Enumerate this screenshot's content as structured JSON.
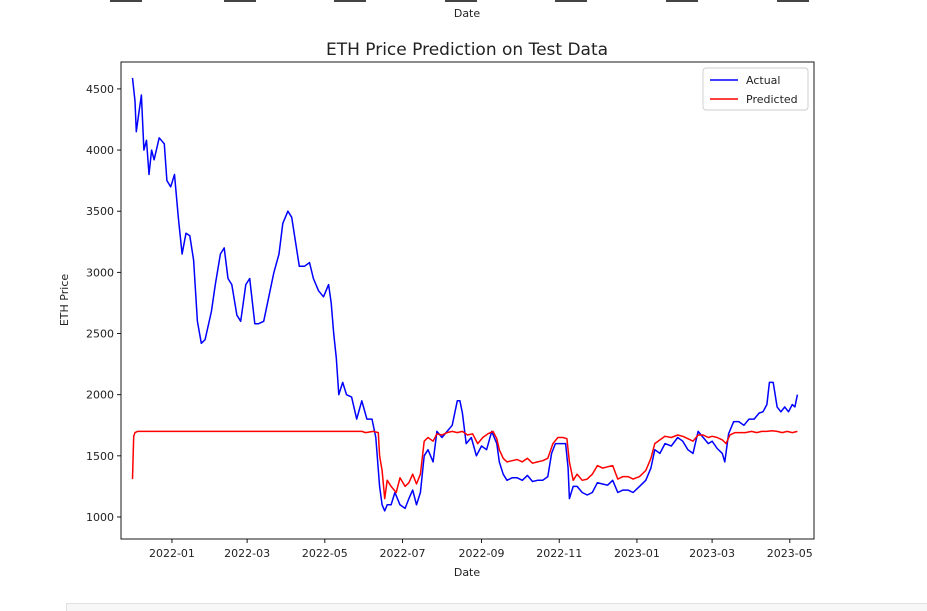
{
  "previous_chart_fragment": {
    "xlabel": "Date"
  },
  "chart_data": {
    "type": "line",
    "title": "ETH Price Prediction on Test Data",
    "xlabel": "Date",
    "ylabel": "ETH Price",
    "xlim": [
      "2021-11-22",
      "2023-05-20"
    ],
    "ylim": [
      820,
      4720
    ],
    "x_ticks": [
      "2022-01",
      "2022-03",
      "2022-05",
      "2022-07",
      "2022-09",
      "2022-11",
      "2023-01",
      "2023-03",
      "2023-05"
    ],
    "y_ticks": [
      1000,
      1500,
      2000,
      2500,
      3000,
      3500,
      4000,
      4500
    ],
    "grid": false,
    "legend_position": "top-right",
    "series": [
      {
        "name": "Actual",
        "color": "#0000ff",
        "points": [
          [
            "2021-12-01",
            4590
          ],
          [
            "2021-12-03",
            4400
          ],
          [
            "2021-12-04",
            4150
          ],
          [
            "2021-12-06",
            4300
          ],
          [
            "2021-12-08",
            4450
          ],
          [
            "2021-12-10",
            4000
          ],
          [
            "2021-12-12",
            4080
          ],
          [
            "2021-12-14",
            3800
          ],
          [
            "2021-12-16",
            4000
          ],
          [
            "2021-12-18",
            3920
          ],
          [
            "2021-12-22",
            4100
          ],
          [
            "2021-12-26",
            4050
          ],
          [
            "2021-12-28",
            3750
          ],
          [
            "2021-12-31",
            3700
          ],
          [
            "2022-01-03",
            3800
          ],
          [
            "2022-01-06",
            3450
          ],
          [
            "2022-01-09",
            3150
          ],
          [
            "2022-01-12",
            3320
          ],
          [
            "2022-01-15",
            3300
          ],
          [
            "2022-01-18",
            3100
          ],
          [
            "2022-01-21",
            2600
          ],
          [
            "2022-01-24",
            2420
          ],
          [
            "2022-01-27",
            2450
          ],
          [
            "2022-02-01",
            2680
          ],
          [
            "2022-02-04",
            2900
          ],
          [
            "2022-02-08",
            3150
          ],
          [
            "2022-02-11",
            3200
          ],
          [
            "2022-02-14",
            2950
          ],
          [
            "2022-02-17",
            2900
          ],
          [
            "2022-02-21",
            2650
          ],
          [
            "2022-02-24",
            2600
          ],
          [
            "2022-02-28",
            2900
          ],
          [
            "2022-03-03",
            2950
          ],
          [
            "2022-03-07",
            2580
          ],
          [
            "2022-03-10",
            2580
          ],
          [
            "2022-03-14",
            2600
          ],
          [
            "2022-03-18",
            2800
          ],
          [
            "2022-03-22",
            3000
          ],
          [
            "2022-03-26",
            3150
          ],
          [
            "2022-03-29",
            3400
          ],
          [
            "2022-04-02",
            3500
          ],
          [
            "2022-04-05",
            3450
          ],
          [
            "2022-04-08",
            3250
          ],
          [
            "2022-04-11",
            3050
          ],
          [
            "2022-04-15",
            3050
          ],
          [
            "2022-04-19",
            3080
          ],
          [
            "2022-04-22",
            2950
          ],
          [
            "2022-04-26",
            2850
          ],
          [
            "2022-04-30",
            2800
          ],
          [
            "2022-05-04",
            2900
          ],
          [
            "2022-05-06",
            2750
          ],
          [
            "2022-05-08",
            2500
          ],
          [
            "2022-05-10",
            2300
          ],
          [
            "2022-05-12",
            2000
          ],
          [
            "2022-05-15",
            2100
          ],
          [
            "2022-05-18",
            2000
          ],
          [
            "2022-05-22",
            1980
          ],
          [
            "2022-05-26",
            1800
          ],
          [
            "2022-05-30",
            1950
          ],
          [
            "2022-06-03",
            1800
          ],
          [
            "2022-06-07",
            1800
          ],
          [
            "2022-06-10",
            1650
          ],
          [
            "2022-06-13",
            1250
          ],
          [
            "2022-06-15",
            1100
          ],
          [
            "2022-06-17",
            1050
          ],
          [
            "2022-06-19",
            1100
          ],
          [
            "2022-06-22",
            1100
          ],
          [
            "2022-06-25",
            1200
          ],
          [
            "2022-06-29",
            1100
          ],
          [
            "2022-07-03",
            1070
          ],
          [
            "2022-07-06",
            1150
          ],
          [
            "2022-07-09",
            1220
          ],
          [
            "2022-07-12",
            1100
          ],
          [
            "2022-07-15",
            1200
          ],
          [
            "2022-07-18",
            1500
          ],
          [
            "2022-07-21",
            1550
          ],
          [
            "2022-07-25",
            1450
          ],
          [
            "2022-07-28",
            1700
          ],
          [
            "2022-08-01",
            1650
          ],
          [
            "2022-08-05",
            1700
          ],
          [
            "2022-08-09",
            1750
          ],
          [
            "2022-08-13",
            1950
          ],
          [
            "2022-08-15",
            1950
          ],
          [
            "2022-08-17",
            1850
          ],
          [
            "2022-08-20",
            1600
          ],
          [
            "2022-08-24",
            1650
          ],
          [
            "2022-08-28",
            1500
          ],
          [
            "2022-09-01",
            1580
          ],
          [
            "2022-09-05",
            1550
          ],
          [
            "2022-09-09",
            1700
          ],
          [
            "2022-09-13",
            1600
          ],
          [
            "2022-09-15",
            1450
          ],
          [
            "2022-09-18",
            1350
          ],
          [
            "2022-09-21",
            1300
          ],
          [
            "2022-09-25",
            1320
          ],
          [
            "2022-09-29",
            1320
          ],
          [
            "2022-10-03",
            1300
          ],
          [
            "2022-10-07",
            1340
          ],
          [
            "2022-10-11",
            1290
          ],
          [
            "2022-10-15",
            1300
          ],
          [
            "2022-10-19",
            1300
          ],
          [
            "2022-10-23",
            1330
          ],
          [
            "2022-10-26",
            1520
          ],
          [
            "2022-10-29",
            1600
          ],
          [
            "2022-11-03",
            1600
          ],
          [
            "2022-11-06",
            1600
          ],
          [
            "2022-11-08",
            1400
          ],
          [
            "2022-11-09",
            1150
          ],
          [
            "2022-11-12",
            1250
          ],
          [
            "2022-11-15",
            1250
          ],
          [
            "2022-11-19",
            1200
          ],
          [
            "2022-11-23",
            1180
          ],
          [
            "2022-11-27",
            1200
          ],
          [
            "2022-12-01",
            1280
          ],
          [
            "2022-12-05",
            1270
          ],
          [
            "2022-12-09",
            1260
          ],
          [
            "2022-12-13",
            1300
          ],
          [
            "2022-12-17",
            1200
          ],
          [
            "2022-12-21",
            1220
          ],
          [
            "2022-12-25",
            1220
          ],
          [
            "2022-12-29",
            1200
          ],
          [
            "2023-01-03",
            1250
          ],
          [
            "2023-01-08",
            1300
          ],
          [
            "2023-01-12",
            1400
          ],
          [
            "2023-01-15",
            1550
          ],
          [
            "2023-01-19",
            1520
          ],
          [
            "2023-01-23",
            1600
          ],
          [
            "2023-01-28",
            1580
          ],
          [
            "2023-02-02",
            1650
          ],
          [
            "2023-02-06",
            1620
          ],
          [
            "2023-02-10",
            1550
          ],
          [
            "2023-02-14",
            1520
          ],
          [
            "2023-02-18",
            1700
          ],
          [
            "2023-02-22",
            1650
          ],
          [
            "2023-02-26",
            1600
          ],
          [
            "2023-03-01",
            1620
          ],
          [
            "2023-03-05",
            1560
          ],
          [
            "2023-03-09",
            1520
          ],
          [
            "2023-03-11",
            1450
          ],
          [
            "2023-03-14",
            1680
          ],
          [
            "2023-03-18",
            1780
          ],
          [
            "2023-03-22",
            1780
          ],
          [
            "2023-03-26",
            1750
          ],
          [
            "2023-03-30",
            1800
          ],
          [
            "2023-04-03",
            1800
          ],
          [
            "2023-04-07",
            1850
          ],
          [
            "2023-04-10",
            1860
          ],
          [
            "2023-04-13",
            1920
          ],
          [
            "2023-04-15",
            2100
          ],
          [
            "2023-04-18",
            2100
          ],
          [
            "2023-04-21",
            1900
          ],
          [
            "2023-04-24",
            1860
          ],
          [
            "2023-04-27",
            1900
          ],
          [
            "2023-04-30",
            1860
          ],
          [
            "2023-05-03",
            1920
          ],
          [
            "2023-05-05",
            1900
          ],
          [
            "2023-05-07",
            2000
          ]
        ]
      },
      {
        "name": "Predicted",
        "color": "#ff0000",
        "points": [
          [
            "2021-12-01",
            1310
          ],
          [
            "2021-12-02",
            1660
          ],
          [
            "2021-12-03",
            1690
          ],
          [
            "2021-12-05",
            1700
          ],
          [
            "2022-02-01",
            1700
          ],
          [
            "2022-04-01",
            1700
          ],
          [
            "2022-05-15",
            1700
          ],
          [
            "2022-05-30",
            1700
          ],
          [
            "2022-06-02",
            1690
          ],
          [
            "2022-06-08",
            1700
          ],
          [
            "2022-06-12",
            1690
          ],
          [
            "2022-06-13",
            1500
          ],
          [
            "2022-06-15",
            1380
          ],
          [
            "2022-06-17",
            1150
          ],
          [
            "2022-06-19",
            1300
          ],
          [
            "2022-06-22",
            1250
          ],
          [
            "2022-06-26",
            1200
          ],
          [
            "2022-06-29",
            1320
          ],
          [
            "2022-07-03",
            1250
          ],
          [
            "2022-07-06",
            1280
          ],
          [
            "2022-07-09",
            1350
          ],
          [
            "2022-07-12",
            1270
          ],
          [
            "2022-07-15",
            1350
          ],
          [
            "2022-07-18",
            1620
          ],
          [
            "2022-07-21",
            1650
          ],
          [
            "2022-07-25",
            1620
          ],
          [
            "2022-07-28",
            1680
          ],
          [
            "2022-08-01",
            1670
          ],
          [
            "2022-08-05",
            1690
          ],
          [
            "2022-08-09",
            1700
          ],
          [
            "2022-08-13",
            1690
          ],
          [
            "2022-08-17",
            1700
          ],
          [
            "2022-08-21",
            1670
          ],
          [
            "2022-08-25",
            1680
          ],
          [
            "2022-08-29",
            1600
          ],
          [
            "2022-09-02",
            1650
          ],
          [
            "2022-09-06",
            1680
          ],
          [
            "2022-09-10",
            1700
          ],
          [
            "2022-09-13",
            1640
          ],
          [
            "2022-09-15",
            1550
          ],
          [
            "2022-09-18",
            1480
          ],
          [
            "2022-09-21",
            1450
          ],
          [
            "2022-09-25",
            1460
          ],
          [
            "2022-09-29",
            1470
          ],
          [
            "2022-10-03",
            1450
          ],
          [
            "2022-10-07",
            1480
          ],
          [
            "2022-10-11",
            1440
          ],
          [
            "2022-10-15",
            1450
          ],
          [
            "2022-10-19",
            1460
          ],
          [
            "2022-10-23",
            1480
          ],
          [
            "2022-10-27",
            1600
          ],
          [
            "2022-10-31",
            1650
          ],
          [
            "2022-11-04",
            1650
          ],
          [
            "2022-11-07",
            1640
          ],
          [
            "2022-11-09",
            1450
          ],
          [
            "2022-11-12",
            1300
          ],
          [
            "2022-11-15",
            1350
          ],
          [
            "2022-11-19",
            1300
          ],
          [
            "2022-11-23",
            1310
          ],
          [
            "2022-11-27",
            1350
          ],
          [
            "2022-12-01",
            1420
          ],
          [
            "2022-12-05",
            1400
          ],
          [
            "2022-12-09",
            1410
          ],
          [
            "2022-12-13",
            1420
          ],
          [
            "2022-12-17",
            1310
          ],
          [
            "2022-12-21",
            1330
          ],
          [
            "2022-12-25",
            1330
          ],
          [
            "2022-12-29",
            1310
          ],
          [
            "2023-01-03",
            1330
          ],
          [
            "2023-01-08",
            1380
          ],
          [
            "2023-01-12",
            1480
          ],
          [
            "2023-01-15",
            1600
          ],
          [
            "2023-01-19",
            1630
          ],
          [
            "2023-01-23",
            1660
          ],
          [
            "2023-01-28",
            1650
          ],
          [
            "2023-02-02",
            1670
          ],
          [
            "2023-02-06",
            1660
          ],
          [
            "2023-02-10",
            1640
          ],
          [
            "2023-02-14",
            1620
          ],
          [
            "2023-02-18",
            1670
          ],
          [
            "2023-02-22",
            1670
          ],
          [
            "2023-02-26",
            1650
          ],
          [
            "2023-03-01",
            1660
          ],
          [
            "2023-03-05",
            1650
          ],
          [
            "2023-03-09",
            1630
          ],
          [
            "2023-03-12",
            1600
          ],
          [
            "2023-03-15",
            1670
          ],
          [
            "2023-03-19",
            1690
          ],
          [
            "2023-03-23",
            1690
          ],
          [
            "2023-03-27",
            1690
          ],
          [
            "2023-04-01",
            1700
          ],
          [
            "2023-04-05",
            1690
          ],
          [
            "2023-04-09",
            1700
          ],
          [
            "2023-04-13",
            1700
          ],
          [
            "2023-04-17",
            1705
          ],
          [
            "2023-04-21",
            1700
          ],
          [
            "2023-04-25",
            1690
          ],
          [
            "2023-04-29",
            1700
          ],
          [
            "2023-05-03",
            1690
          ],
          [
            "2023-05-07",
            1700
          ]
        ]
      }
    ]
  }
}
